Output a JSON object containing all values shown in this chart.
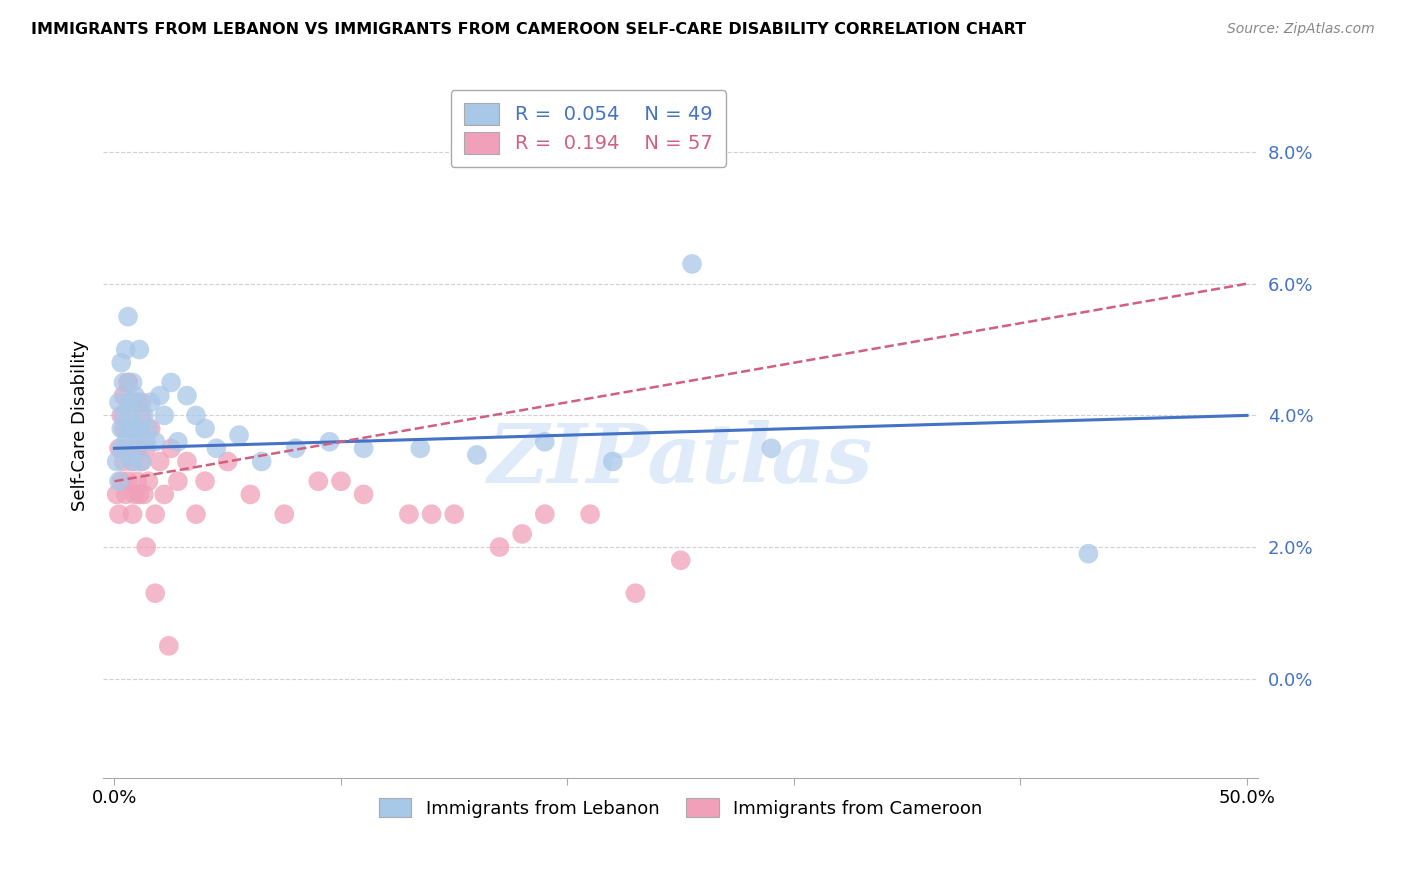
{
  "title": "IMMIGRANTS FROM LEBANON VS IMMIGRANTS FROM CAMEROON SELF-CARE DISABILITY CORRELATION CHART",
  "source": "Source: ZipAtlas.com",
  "ylabel": "Self-Care Disability",
  "xlim": [
    -0.005,
    0.505
  ],
  "ylim": [
    -0.015,
    0.092
  ],
  "ytick_vals": [
    0.0,
    0.02,
    0.04,
    0.06,
    0.08
  ],
  "xtick_vals": [
    0.0,
    0.1,
    0.2,
    0.3,
    0.4,
    0.5
  ],
  "xtick_labels": [
    "0.0%",
    "",
    "",
    "",
    "",
    "50.0%"
  ],
  "legend_r1": "R =  0.054",
  "legend_n1": "N = 49",
  "legend_r2": "R =  0.194",
  "legend_n2": "N = 57",
  "color_lebanon": "#a8c8e8",
  "color_cameroon": "#f0a0b8",
  "color_line_lebanon": "#4472c4",
  "color_line_cameroon": "#d06080",
  "watermark": "ZIPatlas",
  "lebanon_x": [
    0.001,
    0.002,
    0.002,
    0.003,
    0.003,
    0.003,
    0.004,
    0.004,
    0.005,
    0.005,
    0.006,
    0.006,
    0.006,
    0.007,
    0.007,
    0.008,
    0.008,
    0.009,
    0.009,
    0.01,
    0.01,
    0.011,
    0.011,
    0.012,
    0.013,
    0.014,
    0.015,
    0.016,
    0.018,
    0.02,
    0.022,
    0.025,
    0.028,
    0.032,
    0.036,
    0.04,
    0.045,
    0.055,
    0.065,
    0.08,
    0.095,
    0.11,
    0.135,
    0.16,
    0.19,
    0.22,
    0.255,
    0.43,
    0.29
  ],
  "lebanon_y": [
    0.033,
    0.03,
    0.042,
    0.035,
    0.038,
    0.048,
    0.04,
    0.045,
    0.036,
    0.05,
    0.038,
    0.042,
    0.055,
    0.034,
    0.04,
    0.033,
    0.045,
    0.038,
    0.043,
    0.036,
    0.042,
    0.038,
    0.05,
    0.033,
    0.04,
    0.036,
    0.038,
    0.042,
    0.036,
    0.043,
    0.04,
    0.045,
    0.036,
    0.043,
    0.04,
    0.038,
    0.035,
    0.037,
    0.033,
    0.035,
    0.036,
    0.035,
    0.035,
    0.034,
    0.036,
    0.033,
    0.063,
    0.019,
    0.035
  ],
  "cameroon_x": [
    0.001,
    0.002,
    0.002,
    0.003,
    0.003,
    0.004,
    0.004,
    0.005,
    0.005,
    0.006,
    0.006,
    0.007,
    0.007,
    0.008,
    0.008,
    0.009,
    0.009,
    0.01,
    0.01,
    0.011,
    0.012,
    0.012,
    0.013,
    0.014,
    0.015,
    0.016,
    0.018,
    0.02,
    0.022,
    0.025,
    0.028,
    0.032,
    0.036,
    0.04,
    0.05,
    0.06,
    0.075,
    0.09,
    0.11,
    0.13,
    0.15,
    0.17,
    0.19,
    0.21,
    0.23,
    0.25,
    0.004,
    0.006,
    0.008,
    0.01,
    0.012,
    0.014,
    0.018,
    0.024,
    0.1,
    0.14,
    0.18
  ],
  "cameroon_y": [
    0.028,
    0.025,
    0.035,
    0.03,
    0.04,
    0.033,
    0.038,
    0.028,
    0.035,
    0.03,
    0.045,
    0.038,
    0.042,
    0.025,
    0.033,
    0.028,
    0.038,
    0.03,
    0.035,
    0.028,
    0.033,
    0.04,
    0.028,
    0.035,
    0.03,
    0.038,
    0.025,
    0.033,
    0.028,
    0.035,
    0.03,
    0.033,
    0.025,
    0.03,
    0.033,
    0.028,
    0.025,
    0.03,
    0.028,
    0.025,
    0.025,
    0.02,
    0.025,
    0.025,
    0.013,
    0.018,
    0.043,
    0.045,
    0.042,
    0.042,
    0.042,
    0.02,
    0.013,
    0.005,
    0.03,
    0.025,
    0.022
  ]
}
